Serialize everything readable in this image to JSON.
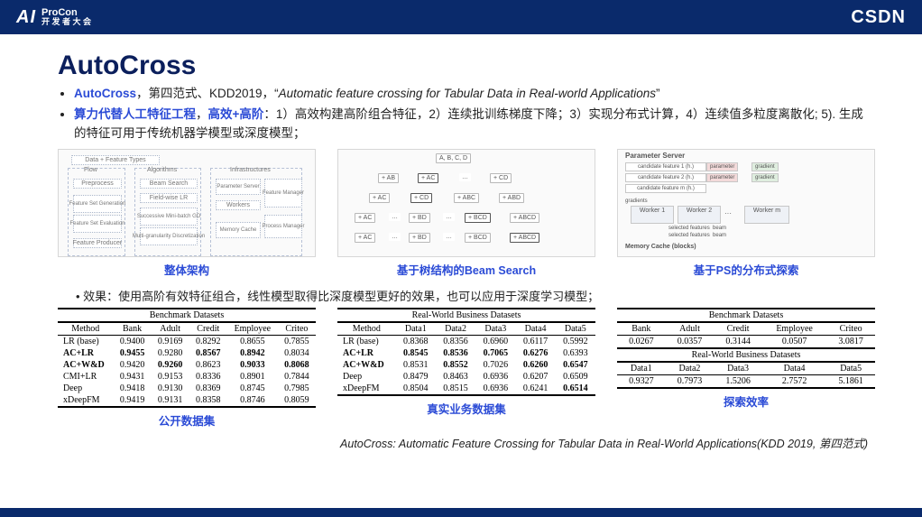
{
  "header": {
    "logo_ai": "AI",
    "logo_en": "ProCon",
    "logo_cn": "开 发 者 大 会",
    "right": "CSDN"
  },
  "title": "AutoCross",
  "bullets": {
    "b1_kw": "AutoCross",
    "b1_rest": "，第四范式、KDD2019，",
    "b1_quote_open": "“",
    "b1_ital": "Automatic feature crossing for Tabular Data in Real-world Applications",
    "b1_quote_close": "”",
    "b2_kw": "算力代替人工特征工程",
    "b2_mid": "，",
    "b2_kw2": "高效+高阶",
    "b2_rest": "：1）高效构建高阶组合特征，2）连续批训练梯度下降；3）实现分布式计算，4）连续值多粒度离散化; 5). 生成的特征可用于传统机器学模型或深度模型；"
  },
  "fig_labels": {
    "a": "整体架构",
    "b": "基于树结构的Beam Search",
    "c": "基于PS的分布式探索"
  },
  "arch": {
    "top": "Data + Feature Types",
    "flow": "Flow",
    "algo": "Algorithms",
    "infra": "Infrastructures",
    "l1": "Preprocess",
    "l2": "Feature Set Generation",
    "l3": "Feature Set Evaluation",
    "l4": "Feature Producer",
    "m1": "Beam Search",
    "m2": "Field-wise LR",
    "m3": "Successive Mini-batch GD",
    "m4": "Multi-granularity Discretization",
    "r1": "Parameter Server",
    "r2": "Workers",
    "r3": "Memory Cache",
    "r4": "Feature Manager",
    "r5": "Process Manager"
  },
  "tree": {
    "root": "A, B, C, D",
    "l1": [
      "+ AB",
      "+ AC",
      "…",
      "+ CD"
    ],
    "l2": [
      "+ AC",
      "+ CD",
      "+ ABC",
      "+ ABD"
    ],
    "l3": [
      "+ AC",
      "…",
      "+ BD",
      "…",
      "+ BCD",
      "+ ABCD"
    ],
    "l4": [
      "+ AC",
      "…",
      "+ BD",
      "…",
      "+ BCD",
      "+ ABCD"
    ]
  },
  "ps": {
    "title": "Parameter Server",
    "rows": [
      "candidate feature 1 (h.)",
      "candidate feature 2 (h.)",
      "candidate feature m (h.)"
    ],
    "tags": [
      "parameter",
      "gradient"
    ],
    "workers": [
      "Worker 1",
      "Worker 2",
      "Worker m"
    ],
    "gradients": "gradients",
    "sel": "selected features",
    "beam": "beam",
    "mem": "Memory Cache (blocks)"
  },
  "sub": "效果：使用高阶有效特征组合，线性模型取得比深度模型更好的效果，也可以应用于深度学习模型；",
  "tbl1": {
    "cap": "Benchmark Datasets",
    "cols": [
      "Method",
      "Bank",
      "Adult",
      "Credit",
      "Employee",
      "Criteo"
    ],
    "rows": [
      [
        "LR (base)",
        "0.9400",
        "0.9169",
        "0.8292",
        "0.8655",
        "0.7855"
      ],
      [
        "AC+LR",
        "0.9455",
        "0.9280",
        "0.8567",
        "0.8942",
        "0.8034"
      ],
      [
        "AC+W&D",
        "0.9420",
        "0.9260",
        "0.8623",
        "0.9033",
        "0.8068"
      ],
      [
        "CMI+LR",
        "0.9431",
        "0.9153",
        "0.8336",
        "0.8901",
        "0.7844"
      ],
      [
        "Deep",
        "0.9418",
        "0.9130",
        "0.8369",
        "0.8745",
        "0.7985"
      ],
      [
        "xDeepFM",
        "0.9419",
        "0.9131",
        "0.8358",
        "0.8746",
        "0.8059"
      ]
    ],
    "bold_cells": [
      [
        1,
        1
      ],
      [
        1,
        3
      ],
      [
        2,
        2
      ],
      [
        1,
        4
      ],
      [
        2,
        4
      ],
      [
        2,
        5
      ]
    ],
    "label": "公开数据集"
  },
  "tbl2": {
    "cap": "Real-World Business Datasets",
    "cols": [
      "Method",
      "Data1",
      "Data2",
      "Data3",
      "Data4",
      "Data5"
    ],
    "rows": [
      [
        "LR (base)",
        "0.8368",
        "0.8356",
        "0.6960",
        "0.6117",
        "0.5992"
      ],
      [
        "AC+LR",
        "0.8545",
        "0.8536",
        "0.7065",
        "0.6276",
        "0.6393"
      ],
      [
        "AC+W&D",
        "0.8531",
        "0.8552",
        "0.7026",
        "0.6260",
        "0.6547"
      ],
      [
        "Deep",
        "0.8479",
        "0.8463",
        "0.6936",
        "0.6207",
        "0.6509"
      ],
      [
        "xDeepFM",
        "0.8504",
        "0.8515",
        "0.6936",
        "0.6241",
        "0.6514"
      ]
    ],
    "bold_cells": [
      [
        1,
        0
      ],
      [
        1,
        1
      ],
      [
        2,
        0
      ],
      [
        1,
        2
      ],
      [
        2,
        2
      ],
      [
        1,
        3
      ],
      [
        1,
        4
      ],
      [
        2,
        4
      ],
      [
        2,
        5
      ],
      [
        4,
        5
      ]
    ],
    "label": "真实业务数据集"
  },
  "tbl3": {
    "cap1": "Benchmark Datasets",
    "cols1": [
      "Bank",
      "Adult",
      "Credit",
      "Employee",
      "Criteo"
    ],
    "row1": [
      "0.0267",
      "0.0357",
      "0.3144",
      "0.0507",
      "3.0817"
    ],
    "cap2": "Real-World Business Datasets",
    "cols2": [
      "Data1",
      "Data2",
      "Data3",
      "Data4",
      "Data5"
    ],
    "row2": [
      "0.9327",
      "0.7973",
      "1.5206",
      "2.7572",
      "5.1861"
    ],
    "label": "探索效率"
  },
  "caption": "AutoCross: Automatic Feature Crossing for Tabular Data in Real-World Applications(KDD 2019, 第四范式)"
}
